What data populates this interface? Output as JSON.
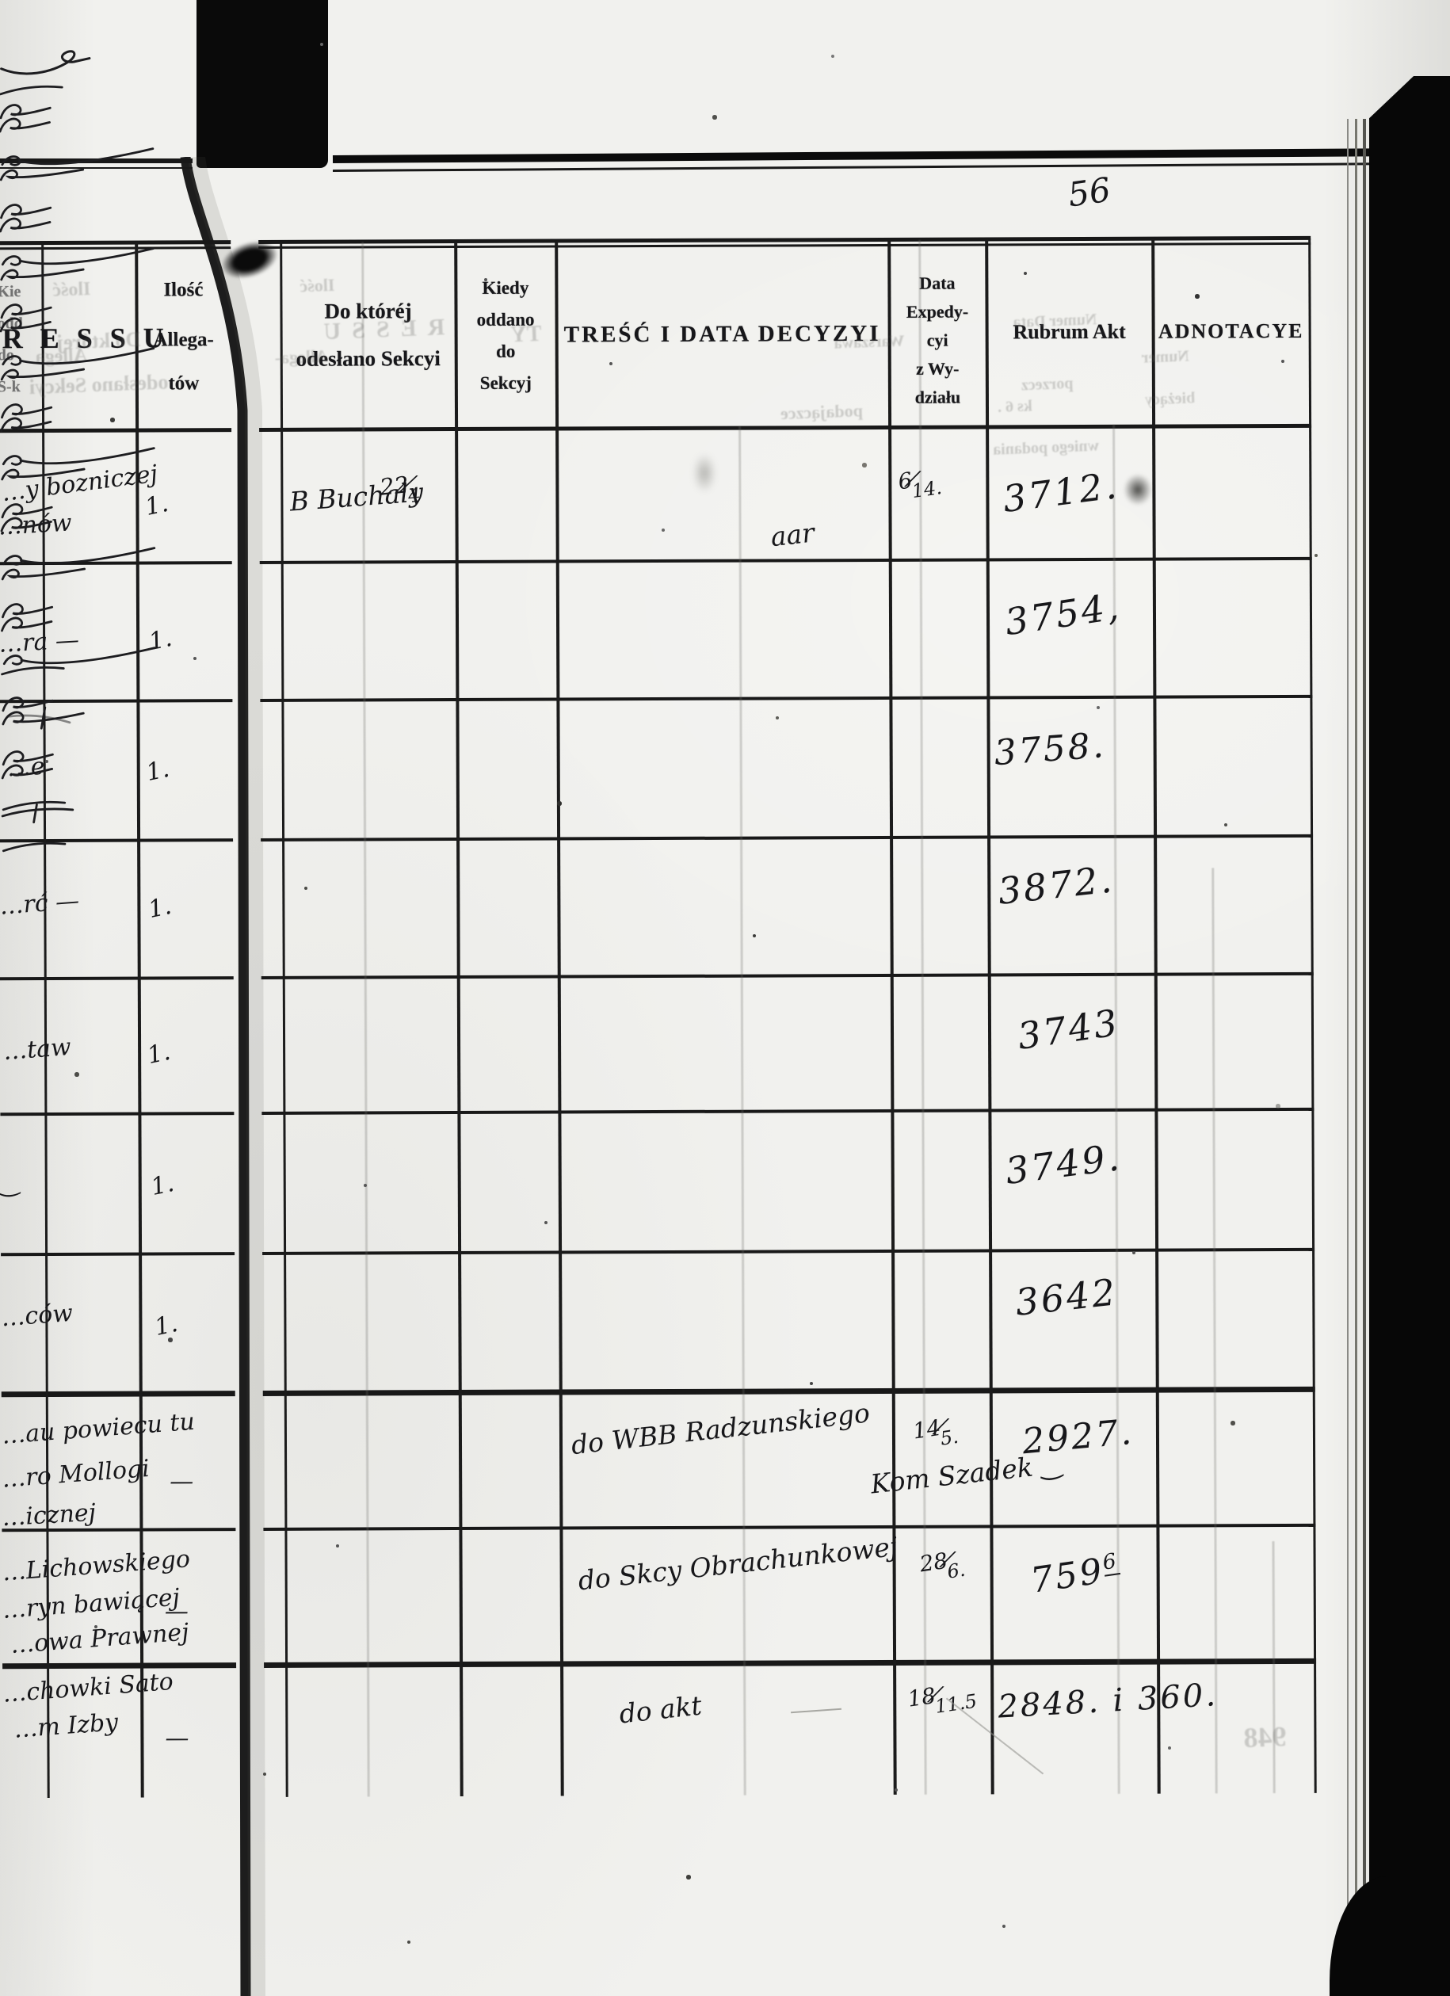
{
  "document": {
    "kind": "scanned-archival-register-page",
    "page_number": "56",
    "ink_color": "#17171a",
    "paper_color": "#f1f1ee"
  },
  "left_page": {
    "cut_header_fragments": [
      "Kie",
      "odd",
      "do",
      "S-k"
    ],
    "title_fragment": "RESSU",
    "allegatow_header": [
      "Ilość",
      "Allega-",
      "tów"
    ],
    "rows": [
      {
        "fragments": [
          "…y bozniczej",
          "…nów"
        ],
        "allegatow": "1."
      },
      {
        "fragments": [
          "…ra —"
        ],
        "allegatow": "1."
      },
      {
        "fragments": [
          "…e"
        ],
        "allegatow": "1."
      },
      {
        "fragments": [
          "…rć —"
        ],
        "allegatow": "1."
      },
      {
        "fragments": [
          "…taw"
        ],
        "allegatow": "1."
      },
      {
        "fragments": [
          "‿"
        ],
        "allegatow": "1."
      },
      {
        "fragments": [
          "…ców"
        ],
        "allegatow": "1."
      },
      {
        "fragments": [
          "…au powiecu tu",
          "…ro Mollogi",
          "…icznej"
        ],
        "allegatow": "—"
      },
      {
        "fragments": [
          "…Lichowskiego",
          "…ryn bawiącej",
          "…owa Prawnej"
        ],
        "allegatow": "—"
      },
      {
        "fragments": [
          "…chowki Sato",
          "…m Izby"
        ],
        "allegatow": "—"
      }
    ]
  },
  "right_page": {
    "headers": {
      "col1": [
        "Do któréj",
        "odesłano Sekcyi"
      ],
      "col2": [
        "Kiedy",
        "oddano",
        "do",
        "Sekcyj"
      ],
      "col3": "TREŚĆ I DATA DECYZYI",
      "col4": [
        "Data",
        "Expedy-",
        "cyi",
        "z Wy-",
        "działu"
      ],
      "col5": "Rubrum Akt",
      "col6": "ADNOTACYE"
    },
    "rows": [
      {
        "sekcya": "B Buchaly",
        "kiedy": "22/4",
        "tresc": [
          "fl-swash",
          "aar",
          "fl-dash"
        ],
        "data_exp": "6/14.",
        "rubrum": "3712."
      },
      {
        "sekcya": "fl-loop",
        "kiedy": "fl-loop",
        "tresc": [
          "fl-dashloop"
        ],
        "data_exp": "fl-loopdash",
        "rubrum": "3754,"
      },
      {
        "sekcya": "fl-loop",
        "kiedy": "fl-loop",
        "tresc": [
          "fl-dashloop"
        ],
        "data_exp": "fl-loopdash",
        "rubrum": "3758."
      },
      {
        "sekcya": "fl-loop",
        "kiedy": "fl-loop",
        "tresc": [
          "fl-dashloop"
        ],
        "data_exp": "fl-loopdash",
        "rubrum": "3872."
      },
      {
        "sekcya": "fl-loop",
        "kiedy": "fl-loop",
        "tresc": [
          "fl-dashloop"
        ],
        "data_exp": "fl-loopdash",
        "rubrum": "3743"
      },
      {
        "sekcya": "fl-loop",
        "kiedy": "fl-loop",
        "tresc": [
          "fl-dashloop"
        ],
        "data_exp": "fl-loopdash",
        "rubrum": "3749."
      },
      {
        "sekcya": "fl-loop",
        "kiedy": "fl-loop",
        "tresc": [
          "fl-dashloop"
        ],
        "data_exp": "fl-dash",
        "rubrum": "3642"
      },
      {
        "sekcya": "fl-loop",
        "kiedy": "fl-loopcross",
        "tresc": [
          "do WBB Radzunskiego",
          "Kom Szadek ‿"
        ],
        "data_exp": "14/5.",
        "rubrum": "2927."
      },
      {
        "sekcya": "fl-loop",
        "kiedy": "fl-loop",
        "tresc": [
          "do Skcy Obrachunkowej"
        ],
        "data_exp": "28/6.",
        "rubrum": "759",
        "rubrum_sup": "6"
      },
      {
        "sekcya": "fl-dash",
        "kiedy": "fl-dashcross",
        "tresc": [
          "do akt",
          "fl-dash"
        ],
        "data_exp": "18/11.5",
        "rubrum": "2848. i 360."
      }
    ]
  },
  "ghosts": [
    "Ilość",
    "Allega",
    "Do której",
    "odesłano Sekcyi",
    "RESSU",
    "TY",
    "Ilość",
    "Allega-",
    "Warszawa",
    "podajączce",
    "Numer   Data",
    "porzecz",
    "ks 6 .",
    "wniego podania",
    "Numer",
    "bieżący",
    "948"
  ]
}
